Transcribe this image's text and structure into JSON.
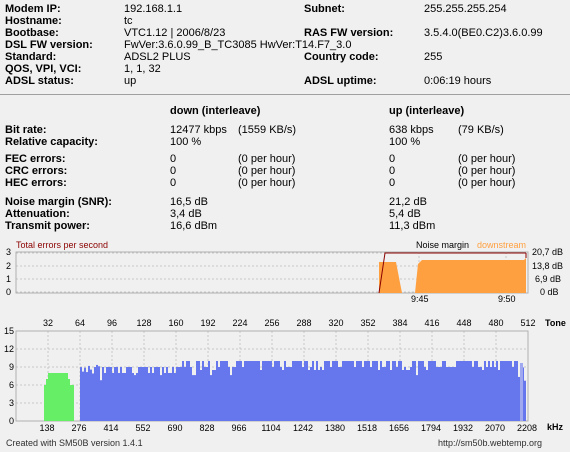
{
  "info": {
    "left": [
      {
        "label": "Modem IP:",
        "value": "192.168.1.1"
      },
      {
        "label": "Hostname:",
        "value": "tc"
      },
      {
        "label": "Bootbase:",
        "value": "VTC1.12 | 2006/8/23"
      },
      {
        "label": "DSL FW version:",
        "value": " FwVer:3.6.0.99_B_TC3085 HwVer:T14.F7_3.0"
      },
      {
        "label": "Standard:",
        "value": "ADSL2 PLUS"
      },
      {
        "label": "QOS, VPI, VCI:",
        "value": "1, 1, 32"
      },
      {
        "label": "ADSL status:",
        "value": "up"
      }
    ],
    "right": [
      {
        "label": "Subnet:",
        "value": "255.255.255.254"
      },
      {
        "label": "RAS FW version:",
        "value": "3.5.4.0(BE0.C2)3.6.0.99"
      },
      {
        "label": "Country code:",
        "value": "255"
      },
      {
        "label": "ADSL uptime:",
        "value": "0:06:19 hours"
      }
    ]
  },
  "stats": {
    "down_header": "down (interleave)",
    "up_header": "up (interleave)",
    "bitrate": {
      "label": "Bit rate:",
      "down": "12477 kbps",
      "down_kb": "(1559 KB/s)",
      "up": "638 kbps",
      "up_kb": "(79 KB/s)"
    },
    "capacity": {
      "label": "Relative capacity:",
      "down": "100 %",
      "up": "100 %"
    },
    "errors": [
      {
        "label": "FEC errors:",
        "down": "0",
        "down_ph": "(0 per hour)",
        "up": "0",
        "up_ph": "(0 per hour)"
      },
      {
        "label": "CRC errors:",
        "down": "0",
        "down_ph": "(0 per hour)",
        "up": "0",
        "up_ph": "(0 per hour)"
      },
      {
        "label": "HEC errors:",
        "down": "0",
        "down_ph": "(0 per hour)",
        "up": "0",
        "up_ph": "(0 per hour)"
      }
    ],
    "snr": {
      "label": "Noise margin (SNR):",
      "down": "16,5 dB",
      "up": "21,2 dB"
    },
    "atten": {
      "label": "Attenuation:",
      "down": "3,4 dB",
      "up": "5,4 dB"
    },
    "power": {
      "label": "Transmit power:",
      "down": "16,6 dBm",
      "up": "11,3 dBm"
    }
  },
  "errchart": {
    "title": "Total errors per second",
    "yticks": [
      "3",
      "2",
      "1",
      "0"
    ],
    "noise_label": "Noise margin",
    "down_label": "downstream",
    "right_ticks": [
      "20,7 dB",
      "13,8 dB",
      "6,9 dB",
      "0 dB"
    ],
    "time_ticks": [
      "9:45",
      "9:50"
    ],
    "color_err": "#8b0000",
    "color_noise": "#ffa040"
  },
  "tone": {
    "top_ticks": [
      "32",
      "64",
      "96",
      "128",
      "160",
      "192",
      "224",
      "256",
      "288",
      "320",
      "352",
      "384",
      "416",
      "448",
      "480",
      "512"
    ],
    "tone_label": "Tone",
    "yticks": [
      "15",
      "12",
      "9",
      "6",
      "3",
      "0"
    ],
    "bottom_ticks": [
      "138",
      "276",
      "414",
      "552",
      "690",
      "828",
      "966",
      "1104",
      "1242",
      "1380",
      "1518",
      "1656",
      "1794",
      "1932",
      "2070",
      "2208"
    ],
    "khz_label": "kHz",
    "up_color": "#66ee66",
    "down_color": "#6677ee"
  },
  "footer": {
    "left": "Created with SM50B version 1.4.1",
    "right": "http://sm50b.webtemp.org"
  }
}
